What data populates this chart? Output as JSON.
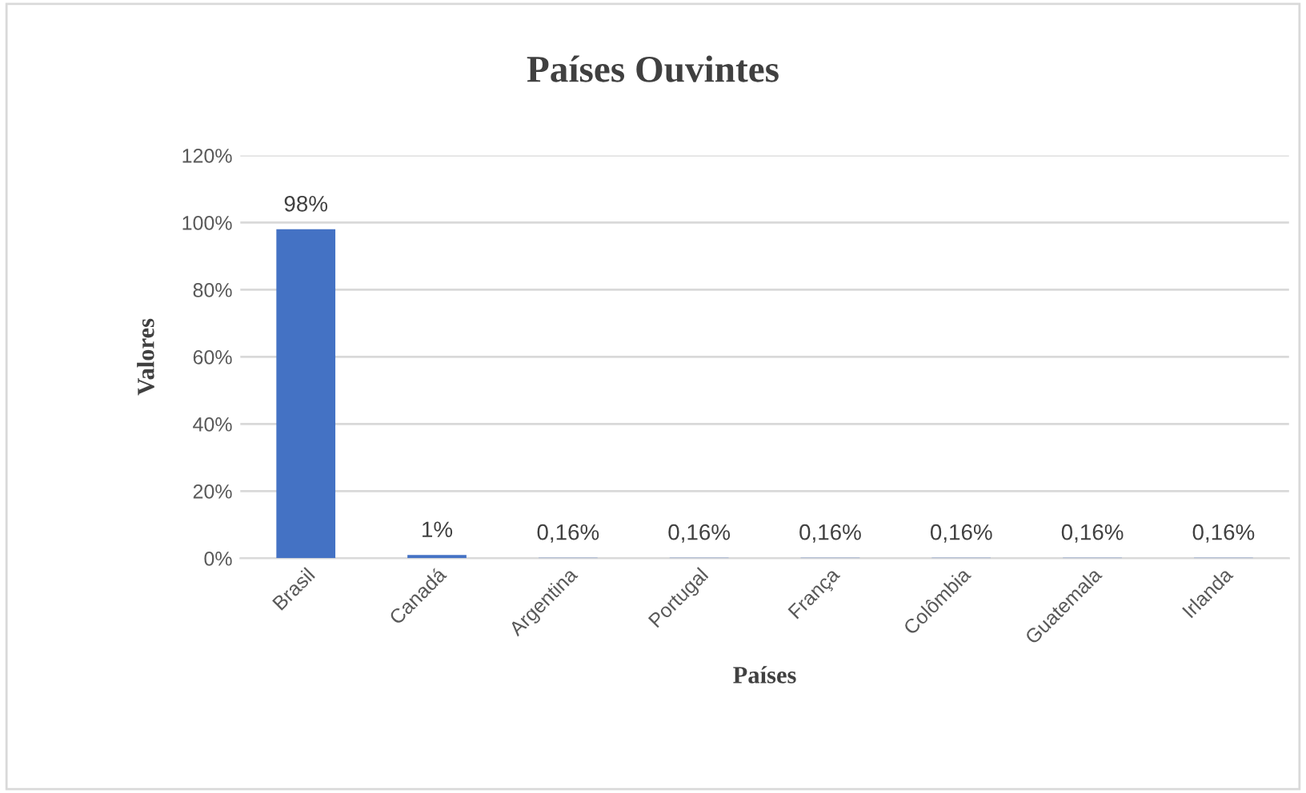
{
  "chart_data": {
    "type": "bar",
    "title": "Países Ouvintes",
    "xlabel": "Países",
    "ylabel": "Valores",
    "categories": [
      "Brasil",
      "Canadá",
      "Argentina",
      "Portugal",
      "França",
      "Colômbia",
      "Guatemala",
      "Irlanda"
    ],
    "values": [
      98,
      1,
      0.16,
      0.16,
      0.16,
      0.16,
      0.16,
      0.16
    ],
    "value_labels": [
      "98%",
      "1%",
      "0,16%",
      "0,16%",
      "0,16%",
      "0,16%",
      "0,16%",
      "0,16%"
    ],
    "color": "#4472c4",
    "ylim": [
      0,
      120
    ],
    "yticks": [
      {
        "value": 0,
        "label": "0%"
      },
      {
        "value": 20,
        "label": "20%"
      },
      {
        "value": 40,
        "label": "40%"
      },
      {
        "value": 60,
        "label": "60%"
      },
      {
        "value": 80,
        "label": "80%"
      },
      {
        "value": 100,
        "label": "100%"
      },
      {
        "value": 120,
        "label": "120%"
      }
    ],
    "grid": "y",
    "legend": false
  }
}
